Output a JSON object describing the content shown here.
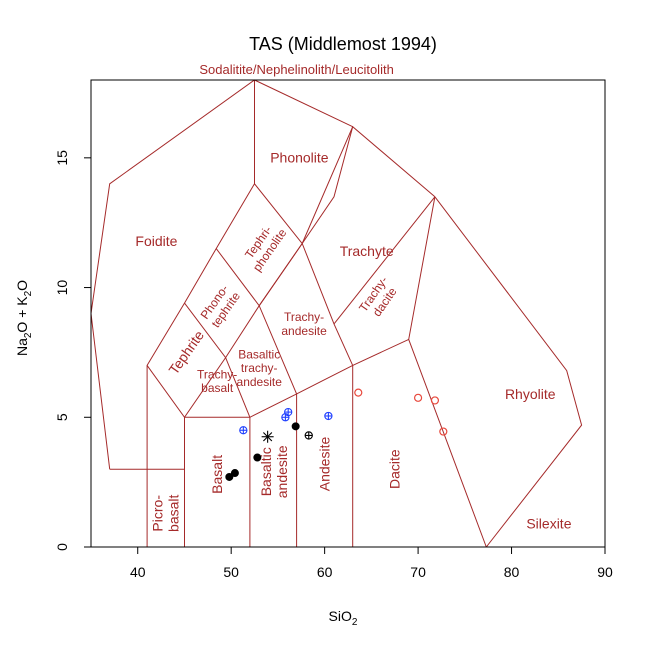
{
  "chart_data": {
    "type": "scatter",
    "title": "TAS (Middlemost 1994)",
    "xlabel": {
      "base": "SiO",
      "sub": "2"
    },
    "ylabel": {
      "p1": "Na",
      "s1": "2",
      "p2": "O + K",
      "s2": "2",
      "p3": "O"
    },
    "xlim": [
      35,
      90
    ],
    "ylim": [
      0,
      18
    ],
    "xticks": [
      "40",
      "50",
      "60",
      "70",
      "80",
      "90"
    ],
    "yticks": [
      "0",
      "5",
      "10",
      "15"
    ],
    "colors": {
      "field": "#a52a2a",
      "axis": "#000000",
      "blue": "#1f3fff",
      "red": "#e8483c"
    },
    "fields": [
      {
        "name": "foidite",
        "label": [
          "Foidite"
        ],
        "x": 42.0,
        "y": 11.8,
        "size": 14,
        "rot": 0
      },
      {
        "name": "phonolite",
        "label": [
          "Phonolite"
        ],
        "x": 57.3,
        "y": 15.0,
        "size": 14,
        "rot": 0
      },
      {
        "name": "trachyte",
        "label": [
          "Trachyte"
        ],
        "x": 64.5,
        "y": 11.4,
        "size": 14,
        "rot": 0
      },
      {
        "name": "rhyolite",
        "label": [
          "Rhyolite"
        ],
        "x": 82.0,
        "y": 5.9,
        "size": 14,
        "rot": 0
      },
      {
        "name": "silexite",
        "label": [
          "Silexite"
        ],
        "x": 84.0,
        "y": 0.9,
        "size": 14,
        "rot": 0
      },
      {
        "name": "sodalitite",
        "label": [
          "Sodalitite/Nephelinolith/Leucitolith"
        ],
        "x": 57.0,
        "y": 18.4,
        "size": 13,
        "rot": 0
      },
      {
        "name": "tephri-phonolite",
        "label": [
          "Tephri-",
          "phonolite"
        ],
        "x": 53.5,
        "y": 11.6,
        "size": 12,
        "rot": -55
      },
      {
        "name": "phono-tephrite",
        "label": [
          "Phono-",
          "tephrite"
        ],
        "x": 48.8,
        "y": 9.3,
        "size": 12,
        "rot": -55
      },
      {
        "name": "tephrite",
        "label": [
          "Tephrite"
        ],
        "x": 45.2,
        "y": 7.5,
        "size": 14,
        "rot": -55
      },
      {
        "name": "trachy-andesite",
        "label": [
          "Trachy-",
          "andesite"
        ],
        "x": 57.8,
        "y": 8.6,
        "size": 12,
        "rot": 0
      },
      {
        "name": "basaltic-trachy-andesite",
        "label": [
          "Basaltic",
          "trachy-",
          "andesite"
        ],
        "x": 53.0,
        "y": 6.9,
        "size": 12,
        "rot": 0
      },
      {
        "name": "trachy-basalt",
        "label": [
          "Trachy-",
          "basalt"
        ],
        "x": 48.5,
        "y": 6.4,
        "size": 12,
        "rot": 0
      },
      {
        "name": "trachy-dacite",
        "label": [
          "Trachy-",
          "dacite"
        ],
        "x": 65.8,
        "y": 9.6,
        "size": 12,
        "rot": -55
      },
      {
        "name": "picro-basalt",
        "label": [
          "Picro-",
          "basalt"
        ],
        "x": 43.0,
        "y": 1.3,
        "size": 14,
        "rot": -90
      },
      {
        "name": "basalt",
        "label": [
          "Basalt"
        ],
        "x": 48.5,
        "y": 2.8,
        "size": 14,
        "rot": -90
      },
      {
        "name": "basaltic-andesite",
        "label": [
          "Basaltic",
          "andesite"
        ],
        "x": 54.6,
        "y": 2.9,
        "size": 14,
        "rot": -90
      },
      {
        "name": "andesite",
        "label": [
          "Andesite"
        ],
        "x": 60.0,
        "y": 3.2,
        "size": 14,
        "rot": -90
      },
      {
        "name": "dacite",
        "label": [
          "Dacite"
        ],
        "x": 67.5,
        "y": 3.0,
        "size": 14,
        "rot": -90
      }
    ],
    "points": [
      {
        "x": 49.8,
        "y": 2.7,
        "marker": "filled",
        "color": "#000000"
      },
      {
        "x": 50.4,
        "y": 2.85,
        "marker": "filled",
        "color": "#000000"
      },
      {
        "x": 52.8,
        "y": 3.45,
        "marker": "filled",
        "color": "#000000"
      },
      {
        "x": 56.9,
        "y": 4.65,
        "marker": "filled",
        "color": "#000000"
      },
      {
        "x": 53.9,
        "y": 4.25,
        "marker": "star",
        "color": "#000000"
      },
      {
        "x": 58.3,
        "y": 4.3,
        "marker": "circle-plus",
        "color": "#000000"
      },
      {
        "x": 51.3,
        "y": 4.5,
        "marker": "circle-plus",
        "color": "#1f3fff"
      },
      {
        "x": 55.8,
        "y": 5.0,
        "marker": "circle-plus",
        "color": "#1f3fff"
      },
      {
        "x": 56.1,
        "y": 5.2,
        "marker": "circle-plus",
        "color": "#1f3fff"
      },
      {
        "x": 60.4,
        "y": 5.05,
        "marker": "circle-plus",
        "color": "#1f3fff"
      },
      {
        "x": 63.6,
        "y": 5.95,
        "marker": "circle",
        "color": "#e8483c"
      },
      {
        "x": 70.0,
        "y": 5.75,
        "marker": "circle",
        "color": "#e8483c"
      },
      {
        "x": 71.8,
        "y": 5.65,
        "marker": "circle",
        "color": "#e8483c"
      },
      {
        "x": 72.7,
        "y": 4.45,
        "marker": "circle",
        "color": "#e8483c"
      }
    ]
  }
}
